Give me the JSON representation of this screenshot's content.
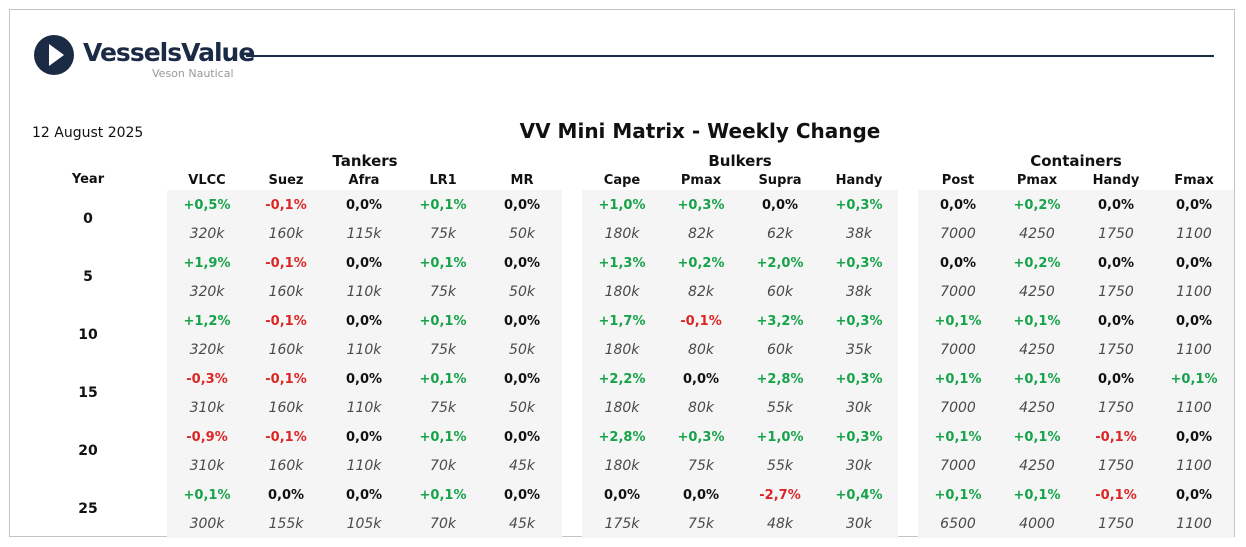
{
  "header": {
    "brand_name": "VesselsValue",
    "brand_sub": "Veson Nautical",
    "date": "12 August 2025",
    "title": "VV Mini Matrix - Weekly Change",
    "logo_icon": "vesselsvalue-logo-icon"
  },
  "year_label": "Year",
  "groups": [
    {
      "name": "Tankers",
      "columns": [
        "VLCC",
        "Suez",
        "Afra",
        "LR1",
        "MR"
      ]
    },
    {
      "name": "Bulkers",
      "columns": [
        "Cape",
        "Pmax",
        "Supra",
        "Handy"
      ]
    },
    {
      "name": "Containers",
      "columns": [
        "Post",
        "Pmax",
        "Handy",
        "Fmax"
      ]
    }
  ],
  "colors": {
    "positive": "#16a34a",
    "negative": "#dc2626",
    "neutral": "#111111",
    "brand": "#1b2a45"
  },
  "rows": [
    {
      "year": "0",
      "change": [
        "+0,5%",
        "-0,1%",
        "0,0%",
        "+0,1%",
        "0,0%",
        "+1,0%",
        "+0,3%",
        "0,0%",
        "+0,3%",
        "0,0%",
        "+0,2%",
        "0,0%",
        "0,0%"
      ],
      "size": [
        "320k",
        "160k",
        "115k",
        "75k",
        "50k",
        "180k",
        "82k",
        "62k",
        "38k",
        "7000",
        "4250",
        "1750",
        "1100"
      ]
    },
    {
      "year": "5",
      "change": [
        "+1,9%",
        "-0,1%",
        "0,0%",
        "+0,1%",
        "0,0%",
        "+1,3%",
        "+0,2%",
        "+2,0%",
        "+0,3%",
        "0,0%",
        "+0,2%",
        "0,0%",
        "0,0%"
      ],
      "size": [
        "320k",
        "160k",
        "110k",
        "75k",
        "50k",
        "180k",
        "82k",
        "60k",
        "38k",
        "7000",
        "4250",
        "1750",
        "1100"
      ]
    },
    {
      "year": "10",
      "change": [
        "+1,2%",
        "-0,1%",
        "0,0%",
        "+0,1%",
        "0,0%",
        "+1,7%",
        "-0,1%",
        "+3,2%",
        "+0,3%",
        "+0,1%",
        "+0,1%",
        "0,0%",
        "0,0%"
      ],
      "size": [
        "320k",
        "160k",
        "110k",
        "75k",
        "50k",
        "180k",
        "80k",
        "60k",
        "35k",
        "7000",
        "4250",
        "1750",
        "1100"
      ]
    },
    {
      "year": "15",
      "change": [
        "-0,3%",
        "-0,1%",
        "0,0%",
        "+0,1%",
        "0,0%",
        "+2,2%",
        "0,0%",
        "+2,8%",
        "+0,3%",
        "+0,1%",
        "+0,1%",
        "0,0%",
        "+0,1%"
      ],
      "size": [
        "310k",
        "160k",
        "110k",
        "75k",
        "50k",
        "180k",
        "80k",
        "55k",
        "30k",
        "7000",
        "4250",
        "1750",
        "1100"
      ]
    },
    {
      "year": "20",
      "change": [
        "-0,9%",
        "-0,1%",
        "0,0%",
        "+0,1%",
        "0,0%",
        "+2,8%",
        "+0,3%",
        "+1,0%",
        "+0,3%",
        "+0,1%",
        "+0,1%",
        "-0,1%",
        "0,0%"
      ],
      "size": [
        "310k",
        "160k",
        "110k",
        "70k",
        "45k",
        "180k",
        "75k",
        "55k",
        "30k",
        "7000",
        "4250",
        "1750",
        "1100"
      ]
    },
    {
      "year": "25",
      "change": [
        "+0,1%",
        "0,0%",
        "0,0%",
        "+0,1%",
        "0,0%",
        "0,0%",
        "0,0%",
        "-2,7%",
        "+0,4%",
        "+0,1%",
        "+0,1%",
        "-0,1%",
        "0,0%"
      ],
      "size": [
        "300k",
        "155k",
        "105k",
        "70k",
        "45k",
        "175k",
        "75k",
        "48k",
        "30k",
        "6500",
        "4000",
        "1750",
        "1100"
      ]
    }
  ]
}
